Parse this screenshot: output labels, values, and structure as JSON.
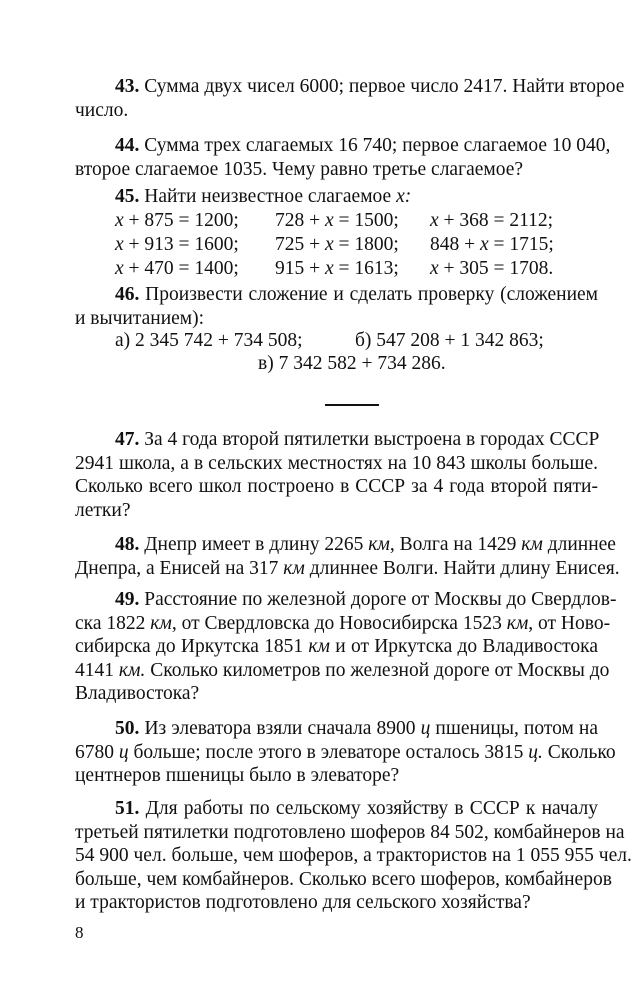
{
  "problems_top": [
    {
      "num": "43.",
      "lines": [
        [
          " Сумма двух чисел 6000; первое число 2417. Найти второе"
        ],
        [
          "число."
        ]
      ]
    },
    {
      "num": "44.",
      "lines": [
        [
          " Сумма трех слагаемых 16 740; первое слагаемое 10 040,"
        ],
        [
          "второе слагаемое 1035. Чему равно третье слагаемое?"
        ]
      ]
    },
    {
      "num": "45.",
      "lines": [
        [
          " Найти неизвестное слагаемое ",
          {
            "i": "x:"
          }
        ]
      ]
    }
  ],
  "equations": [
    [
      [
        {
          "i": "x"
        },
        " + 875 = 1200;"
      ],
      [
        "728 + ",
        {
          "i": "x"
        },
        " = 1500;"
      ],
      [
        {
          "i": "x"
        },
        " + 368 = 2112;"
      ]
    ],
    [
      [
        {
          "i": "x"
        },
        " + 913 = 1600;"
      ],
      [
        "725 + ",
        {
          "i": "x"
        },
        " = 1800;"
      ],
      [
        "848 + ",
        {
          "i": "x"
        },
        " = 1715;"
      ]
    ],
    [
      [
        {
          "i": "x"
        },
        " + 470 = 1400;"
      ],
      [
        "915 + ",
        {
          "i": "x"
        },
        " = 1613;"
      ],
      [
        {
          "i": "x"
        },
        " + 305 = 1708."
      ]
    ]
  ],
  "problem46": {
    "num": "46.",
    "lines": [
      [
        " Произвести сложение и сделать проверку (сложением"
      ],
      [
        "и вычитанием):"
      ]
    ],
    "a": "а) 2 345 742 + 734 508;",
    "b": "б) 547 208 + 1 342 863;",
    "c": "в) 7 342 582 + 734 286."
  },
  "problems_bottom": [
    {
      "num": "47.",
      "lines": [
        [
          " За 4 года второй пятилетки выстроена в городах СССР"
        ],
        [
          "2941 школа, а в сельских местностях на 10 843 школы больше."
        ],
        [
          "Сколько всего школ построено в СССР за 4 года второй пяти-"
        ],
        [
          "летки?"
        ]
      ]
    },
    {
      "num": "48.",
      "lines": [
        [
          " Днепр имеет в длину 2265 ",
          {
            "i": "км"
          },
          ", Волга на 1429 ",
          {
            "i": "км"
          },
          " длиннее"
        ],
        [
          "Днепра, а Енисей на 317 ",
          {
            "i": "км"
          },
          " длиннее Волги. Найти длину Енисея."
        ]
      ]
    },
    {
      "num": "49.",
      "lines": [
        [
          " Расстояние по железной дороге от Москвы до Свердлов-"
        ],
        [
          "ска 1822 ",
          {
            "i": "км"
          },
          ", от Свердловска до Новосибирска 1523 ",
          {
            "i": "км"
          },
          ", от Ново-"
        ],
        [
          "сибирска до Иркутска 1851 ",
          {
            "i": "км"
          },
          " и от Иркутска до Владивостока"
        ],
        [
          "4141 ",
          {
            "i": "км."
          },
          " Сколько километров по железной дороге от Москвы до"
        ],
        [
          "Владивостока?"
        ]
      ]
    },
    {
      "num": "50.",
      "lines": [
        [
          " Из элеватора взяли сначала 8900 ",
          {
            "i": "ц"
          },
          " пшеницы, потом на"
        ],
        [
          "6780 ",
          {
            "i": "ц"
          },
          " больше; после этого в элеваторе осталось 3815 ",
          {
            "i": "ц."
          },
          " Сколько"
        ],
        [
          "центнеров пшеницы было в элеваторе?"
        ]
      ]
    },
    {
      "num": "51.",
      "lines": [
        [
          " Для работы по сельскому хозяйству в СССР к началу"
        ],
        [
          "третьей пятилетки подготовлено шоферов 84 502, комбайнеров на"
        ],
        [
          "54 900 чел. больше, чем шоферов, а трактористов на 1 055 955 чел."
        ],
        [
          "больше, чем комбайнеров. Сколько всего шоферов, комбайнеров"
        ],
        [
          "и трактористов подготовлено для сельского хозяйства?"
        ]
      ]
    }
  ],
  "page_number": "8"
}
